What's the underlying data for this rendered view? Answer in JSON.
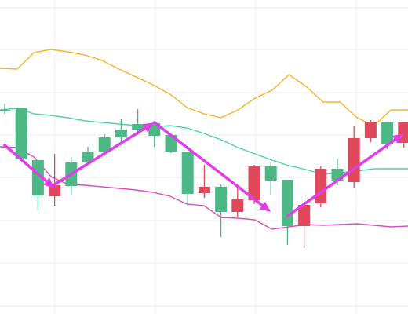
{
  "chart_data": {
    "type": "candlestick",
    "title": "",
    "xlabel": "",
    "ylabel": "",
    "ylim": [
      0,
      400
    ],
    "grid": true,
    "legend": "none",
    "colors": {
      "up": "#4db886",
      "down": "#e0485c",
      "upper_band": "#f5b32a",
      "middle_band": "#4fd1b0",
      "lower_band": "#d64fc4",
      "arrow": "#e03ee8",
      "grid": "#eeeeee"
    },
    "candles": [
      {
        "open": 258,
        "close": 260,
        "high": 268,
        "low": 255
      },
      {
        "open": 197,
        "close": 262,
        "high": 262,
        "low": 197
      },
      {
        "open": 151,
        "close": 196,
        "high": 196,
        "low": 132
      },
      {
        "open": 164,
        "close": 150,
        "high": 204,
        "low": 137
      },
      {
        "open": 163,
        "close": 193,
        "high": 200,
        "low": 152
      },
      {
        "open": 193,
        "close": 207,
        "high": 213,
        "low": 190
      },
      {
        "open": 207,
        "close": 225,
        "high": 229,
        "low": 201
      },
      {
        "open": 225,
        "close": 235,
        "high": 248,
        "low": 215
      },
      {
        "open": 235,
        "close": 242,
        "high": 261,
        "low": 228
      },
      {
        "open": 227,
        "close": 243,
        "high": 243,
        "low": 213
      },
      {
        "open": 207,
        "close": 228,
        "high": 229,
        "low": 205
      },
      {
        "open": 153,
        "close": 207,
        "high": 207,
        "low": 137
      },
      {
        "open": 162,
        "close": 154,
        "high": 190,
        "low": 148
      },
      {
        "open": 130,
        "close": 162,
        "high": 165,
        "low": 98
      },
      {
        "open": 146,
        "close": 130,
        "high": 162,
        "low": 123
      },
      {
        "open": 188,
        "close": 145,
        "high": 190,
        "low": 140
      },
      {
        "open": 170,
        "close": 188,
        "high": 194,
        "low": 152
      },
      {
        "open": 112,
        "close": 171,
        "high": 171,
        "low": 88
      },
      {
        "open": 139,
        "close": 112,
        "high": 145,
        "low": 84
      },
      {
        "open": 185,
        "close": 141,
        "high": 188,
        "low": 136
      },
      {
        "open": 169,
        "close": 185,
        "high": 198,
        "low": 164
      },
      {
        "open": 224,
        "close": 168,
        "high": 240,
        "low": 160
      },
      {
        "open": 245,
        "close": 224,
        "high": 247,
        "low": 219
      },
      {
        "open": 216,
        "close": 244,
        "high": 244,
        "low": 210
      },
      {
        "open": 245,
        "close": 218,
        "high": 245,
        "low": 212
      }
    ],
    "bands": {
      "upper": [
        313,
        312,
        333,
        337,
        334,
        330,
        323,
        312,
        302,
        292,
        280,
        263,
        255,
        250,
        260,
        275,
        285,
        305,
        290,
        270,
        270,
        250,
        240,
        260,
        260
      ],
      "middle": [
        260,
        262,
        255,
        253,
        250,
        246,
        244,
        242,
        240,
        238,
        240,
        237,
        230,
        222,
        212,
        204,
        196,
        189,
        184,
        178,
        180,
        182,
        185,
        185,
        185
      ],
      "lower": [
        213,
        212,
        200,
        175,
        165,
        164,
        162,
        160,
        158,
        155,
        150,
        140,
        138,
        123,
        122,
        120,
        108,
        111,
        114,
        113,
        114,
        115,
        113,
        111,
        112
      ]
    },
    "arrows": [
      {
        "from": [
          0,
          215
        ],
        "to": [
          3,
          160
        ]
      },
      {
        "from": [
          3,
          165
        ],
        "to": [
          9,
          244
        ]
      },
      {
        "from": [
          9,
          244
        ],
        "to": [
          16,
          130
        ]
      },
      {
        "from": [
          17,
          125
        ],
        "to": [
          24,
          230
        ]
      }
    ]
  }
}
